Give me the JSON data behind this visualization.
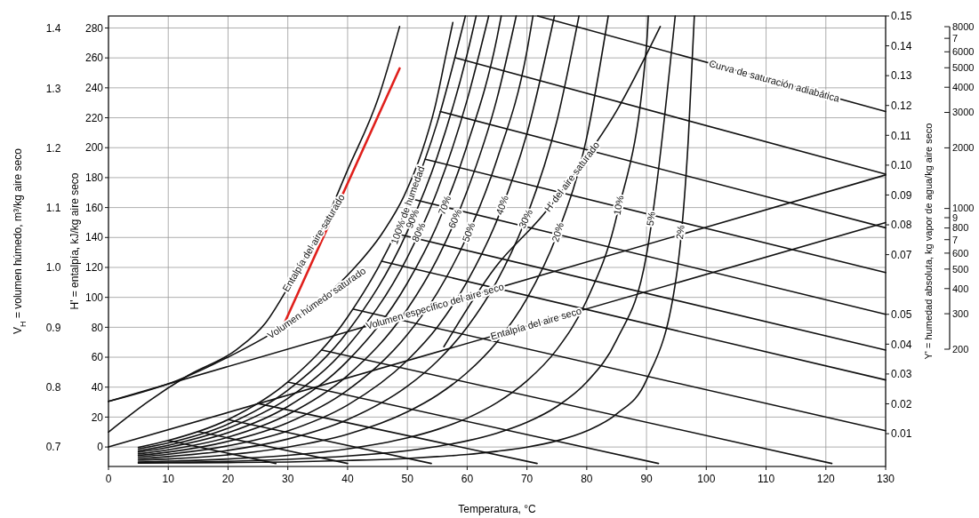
{
  "chart_data": {
    "type": "line",
    "xlabel": "Temperatura, °C",
    "ylabel": "H' = entalpía, kJ/kg aire seco",
    "y2label": "Y' = humedad absoluta, kg vapor de agua/kg aire seco",
    "y3label": "V$_{H}$ = volumen húmedo, m³/kg aire seco",
    "xlim": [
      0,
      130
    ],
    "xticks": [
      0,
      10,
      20,
      30,
      40,
      50,
      60,
      70,
      80,
      90,
      100,
      110,
      120,
      130
    ],
    "ylim": [
      -13,
      288
    ],
    "yticks": [
      0,
      20,
      40,
      60,
      80,
      100,
      120,
      140,
      160,
      180,
      200,
      220,
      240,
      260,
      280
    ],
    "y2lim": [
      -0.001,
      0.15
    ],
    "y2ticks": [
      0.01,
      0.02,
      0.03,
      0.04,
      0.05,
      0.07,
      0.08,
      0.09,
      {
        "value": 0.1,
        "label": "0.10"
      },
      0.11,
      0.12,
      0.13,
      0.14,
      0.15
    ],
    "y3lim": [
      0.667,
      1.421
    ],
    "y3ticks": [
      0.7,
      0.8,
      0.9,
      {
        "value": 1.0,
        "label": "1.0"
      },
      1.1,
      1.2,
      1.3,
      1.4
    ],
    "annotations": [
      "200",
      "300",
      "400",
      "500",
      "600",
      "7",
      "800",
      "9",
      "1000",
      "2000",
      "3000",
      "4000",
      "5000",
      "6000",
      "7",
      "8000"
    ],
    "grid": true,
    "marker": "none",
    "line_style": "solid",
    "series": [
      {
        "name": "Entalpía del aire saturado",
        "color": "#111111",
        "axis": "y",
        "x": [
          0,
          6.5,
          13.4,
          21.4,
          26.3,
          30.1,
          33.8,
          35.3,
          40.2,
          45.2,
          48.7
        ],
        "values": [
          10,
          30,
          48,
          65,
          83,
          107,
          133,
          143,
          187,
          234,
          281
        ]
      },
      {
        "color": "#e0201c",
        "axis": "y",
        "x": [
          29.0,
          48.7
        ],
        "values": [
          79,
          253
        ]
      },
      {
        "name": "Volumen húmedo saturado",
        "color": "#111111",
        "axis": "y3",
        "x": [
          0,
          11.5,
          20.4,
          29.0,
          35.3,
          41.2,
          45.7,
          49.4,
          52.4,
          54.6,
          56.5,
          57.6
        ],
        "values": [
          0.776,
          0.811,
          0.852,
          0.9,
          0.944,
          1.0,
          1.056,
          1.119,
          1.193,
          1.268,
          1.358,
          1.41
        ]
      },
      {
        "name": "Volumen específico del aire seco",
        "color": "#111111",
        "axis": "y3",
        "x": [
          0,
          130
        ],
        "values": [
          0.776,
          1.155
        ]
      },
      {
        "name": "Entalpía del aire seco",
        "color": "#111111",
        "axis": "y",
        "x": [
          0,
          130
        ],
        "values": [
          0,
          150
        ]
      },
      {
        "name": "H' del aire saturado",
        "color": "#111111",
        "axis": "y",
        "x": [
          56.1,
          64.7,
          72.9,
          78.9,
          84.9,
          92.3
        ],
        "values": [
          67,
          120,
          156,
          188,
          224,
          281
        ]
      },
      {
        "name": "100% de humedad",
        "color": "#111111",
        "axis": "y2",
        "x": [
          5,
          10,
          20,
          30,
          40,
          50,
          55,
          59.7
        ],
        "values": [
          0.0054,
          0.0077,
          0.0147,
          0.0273,
          0.0491,
          0.0864,
          0.1143,
          0.15
        ]
      },
      {
        "name": "90%",
        "color": "#111111",
        "axis": "y2",
        "x": [
          5,
          10,
          20,
          30,
          40,
          50,
          55,
          60,
          61.5
        ],
        "values": [
          0.0049,
          0.0069,
          0.0132,
          0.0246,
          0.0442,
          0.0778,
          0.1029,
          0.1372,
          0.15
        ]
      },
      {
        "name": "80%",
        "color": "#111111",
        "axis": "y2",
        "x": [
          5,
          10,
          20,
          30,
          40,
          50,
          55,
          60,
          63.6
        ],
        "values": [
          0.0043,
          0.0061,
          0.0118,
          0.0218,
          0.0393,
          0.0691,
          0.0914,
          0.1219,
          0.15
        ]
      },
      {
        "name": "70%",
        "color": "#111111",
        "axis": "y2",
        "x": [
          5,
          10,
          20,
          30,
          40,
          50,
          55,
          60,
          65,
          65.7
        ],
        "values": [
          0.0038,
          0.0054,
          0.0103,
          0.0191,
          0.0344,
          0.0605,
          0.08,
          0.1067,
          0.1428,
          0.15
        ]
      },
      {
        "name": "60%",
        "color": "#111111",
        "axis": "y2",
        "x": [
          5,
          10,
          20,
          30,
          40,
          50,
          55,
          60,
          65,
          68.2
        ],
        "values": [
          0.0032,
          0.0046,
          0.0088,
          0.0164,
          0.0295,
          0.0518,
          0.0686,
          0.0914,
          0.1224,
          0.15
        ]
      },
      {
        "name": "50%",
        "color": "#111111",
        "axis": "y2",
        "x": [
          5,
          10,
          20,
          30,
          40,
          50,
          55,
          60,
          65,
          70,
          71
        ],
        "values": [
          0.0027,
          0.0038,
          0.0074,
          0.0137,
          0.0246,
          0.0432,
          0.0572,
          0.0762,
          0.102,
          0.1383,
          0.15
        ]
      },
      {
        "name": "40%",
        "color": "#111111",
        "axis": "y2",
        "x": [
          5,
          10,
          20,
          30,
          40,
          50,
          55,
          60,
          65,
          70,
          74.6
        ],
        "values": [
          0.0022,
          0.0031,
          0.0059,
          0.0109,
          0.0196,
          0.0346,
          0.0457,
          0.061,
          0.0816,
          0.1106,
          0.15
        ]
      },
      {
        "name": "30%",
        "color": "#111111",
        "axis": "y2",
        "x": [
          5,
          10,
          20,
          30,
          40,
          50,
          55,
          60,
          65,
          70,
          75,
          78.7
        ],
        "values": [
          0.0016,
          0.0023,
          0.0044,
          0.0082,
          0.0147,
          0.0259,
          0.0343,
          0.0457,
          0.0612,
          0.083,
          0.1147,
          0.15
        ]
      },
      {
        "name": "20%",
        "color": "#111111",
        "axis": "y2",
        "x": [
          5,
          10,
          20,
          30,
          40,
          50,
          55,
          60,
          65,
          70,
          75,
          80,
          83.6
        ],
        "values": [
          0.0011,
          0.0015,
          0.0029,
          0.0055,
          0.0098,
          0.0173,
          0.0229,
          0.0305,
          0.0408,
          0.0553,
          0.0765,
          0.1093,
          0.15
        ]
      },
      {
        "name": "10%",
        "color": "#111111",
        "axis": "y2",
        "x": [
          5,
          10,
          20,
          30,
          40,
          50,
          55,
          60,
          65,
          70,
          75,
          80,
          85,
          90,
          90.3
        ],
        "values": [
          0.0005,
          0.0008,
          0.0015,
          0.0027,
          0.0049,
          0.0086,
          0.0114,
          0.0152,
          0.0204,
          0.0277,
          0.0382,
          0.0547,
          0.0828,
          0.14,
          0.15
        ]
      },
      {
        "name": "5%",
        "color": "#111111",
        "axis": "y2",
        "x": [
          5,
          10,
          20,
          30,
          40,
          50,
          55,
          60,
          65,
          70,
          75,
          80,
          85,
          90,
          94.8
        ],
        "values": [
          0.0003,
          0.0004,
          0.0007,
          0.0014,
          0.0025,
          0.0043,
          0.0057,
          0.0076,
          0.0102,
          0.0138,
          0.0191,
          0.0273,
          0.0414,
          0.07,
          0.15
        ]
      },
      {
        "name": "2%",
        "color": "#111111",
        "axis": "y2",
        "x": [
          5,
          10,
          20,
          30,
          40,
          50,
          55,
          60,
          65,
          70,
          75,
          80,
          85,
          90,
          95,
          97,
          98
        ],
        "values": [
          0.0001,
          0.0002,
          0.0003,
          0.0005,
          0.001,
          0.0017,
          0.0023,
          0.003,
          0.0041,
          0.0055,
          0.0076,
          0.0109,
          0.0166,
          0.028,
          0.0628,
          0.109,
          0.15
        ]
      },
      {
        "name": "Curva de saturación adiabática",
        "color": "#111111",
        "axis": "y2",
        "x": [
          71.8,
          130
        ],
        "values": [
          0.15,
          0.118
        ]
      },
      {
        "color": "#111111",
        "axis": "y2",
        "x": [
          58,
          130
        ],
        "values": [
          0.136,
          0.097
        ]
      },
      {
        "color": "#111111",
        "axis": "y2",
        "x": [
          55.5,
          130
        ],
        "values": [
          0.118,
          0.079
        ]
      },
      {
        "color": "#111111",
        "axis": "y2",
        "x": [
          53,
          130
        ],
        "values": [
          0.102,
          0.064
        ]
      },
      {
        "color": "#111111",
        "axis": "y2",
        "x": [
          50.5,
          130
        ],
        "values": [
          0.0888,
          0.05
        ]
      },
      {
        "color": "#111111",
        "axis": "y2",
        "x": [
          48,
          130
        ],
        "values": [
          0.0771,
          0.038
        ]
      },
      {
        "color": "#111111",
        "axis": "y2",
        "x": [
          45.7,
          130
        ],
        "values": [
          0.0678,
          0.028
        ]
      },
      {
        "color": "#111111",
        "axis": "y2",
        "x": [
          41,
          130
        ],
        "values": [
          0.0517,
          0.011
        ]
      },
      {
        "color": "#111111",
        "axis": "y2",
        "x": [
          35.7,
          121
        ],
        "values": [
          0.038,
          0
        ]
      },
      {
        "color": "#111111",
        "axis": "y2",
        "x": [
          30,
          92
        ],
        "values": [
          0.0273,
          0
        ]
      },
      {
        "color": "#111111",
        "axis": "y2",
        "x": [
          25,
          71.7
        ],
        "values": [
          0.0201,
          0
        ]
      },
      {
        "color": "#111111",
        "axis": "y2",
        "x": [
          20,
          54
        ],
        "values": [
          0.0147,
          0
        ]
      },
      {
        "color": "#111111",
        "axis": "y2",
        "x": [
          15,
          40
        ],
        "values": [
          0.0107,
          0
        ]
      },
      {
        "color": "#111111",
        "axis": "y2",
        "x": [
          10,
          28
        ],
        "values": [
          0.0077,
          0
        ]
      }
    ]
  }
}
